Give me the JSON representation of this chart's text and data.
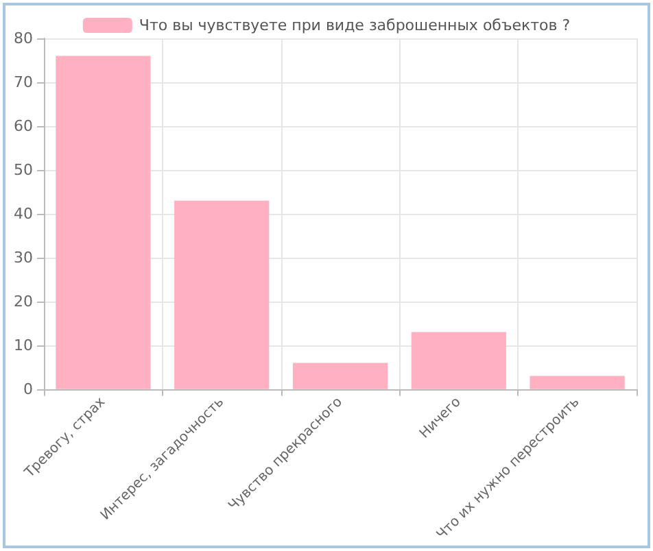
{
  "chart_data": {
    "type": "bar",
    "categories": [
      "Тревогу, страх",
      "Интерес, загадочность",
      "Чувство прекрасного",
      "Ничего",
      "Что их нужно перестроить"
    ],
    "series": [
      {
        "name": "Что вы чувствуете при виде заброшенных объектов ?",
        "color": "#ffb1c1",
        "values": [
          76,
          43,
          6,
          13,
          3
        ]
      }
    ],
    "ylim": [
      0,
      80
    ],
    "yticks": [
      0,
      10,
      20,
      30,
      40,
      50,
      60,
      70,
      80
    ],
    "grid": true,
    "legend": "top"
  }
}
